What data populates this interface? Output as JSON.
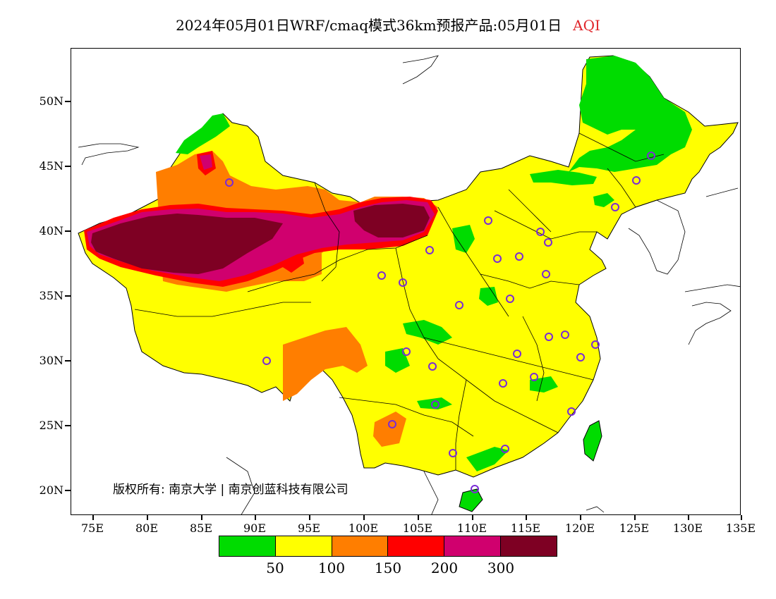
{
  "title": {
    "main": "2024年05月01日WRF/cmaq模式36km预报产品:05月01日",
    "variable": "AQI"
  },
  "map": {
    "lat_labels": [
      "50N",
      "45N",
      "40N",
      "35N",
      "30N",
      "25N",
      "20N"
    ],
    "lon_labels": [
      "75E",
      "80E",
      "85E",
      "90E",
      "95E",
      "100E",
      "105E",
      "110E",
      "115E",
      "120E",
      "125E",
      "130E",
      "135E"
    ],
    "copyright": "版权所有: 南京大学 | 南京创蓝科技有限公司"
  },
  "legend": {
    "colors": [
      "#00dc00",
      "#ffff00",
      "#ff7e00",
      "#ff0000",
      "#d0006e",
      "#7e0023"
    ],
    "labels": [
      "50",
      "100",
      "150",
      "200",
      "300"
    ]
  },
  "colors": {
    "title_accent": "#e0262b",
    "station_marker": "#7a2bd6",
    "ocean": "#ffffff",
    "borders": "#000000"
  }
}
